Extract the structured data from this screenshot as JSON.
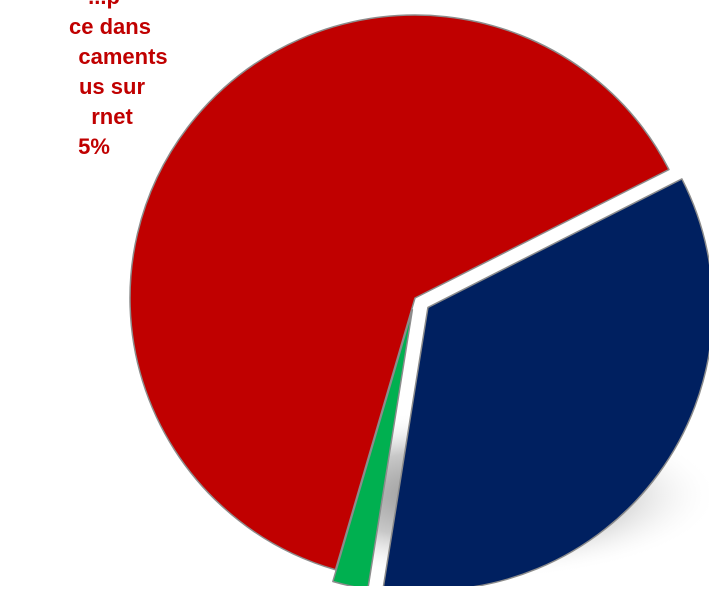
{
  "chart_data": {
    "type": "pie",
    "title": "",
    "slices": [
      {
        "label": "",
        "value": 63,
        "color": "#c00000"
      },
      {
        "label": "",
        "value": 35,
        "color": "#002060"
      },
      {
        "label": "",
        "value": 2,
        "color": "#00b050"
      }
    ],
    "data_label": {
      "lines": [
        "...p",
        "ce dans",
        "caments",
        "us sur",
        "rnet",
        "5%"
      ],
      "color": "#c00000"
    }
  }
}
